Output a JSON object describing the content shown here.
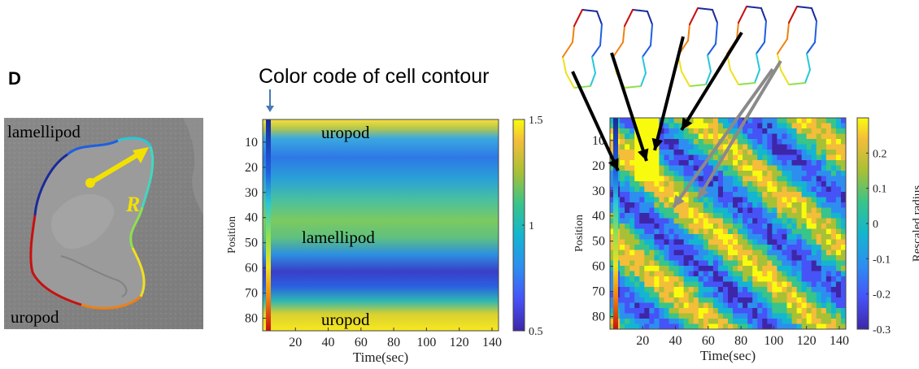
{
  "panel_letter": "D",
  "heading": "Color code of cell contour",
  "image_panel": {
    "labels": {
      "lamellipod": "lamellipod",
      "uropod": "uropod",
      "radius": "R"
    }
  },
  "colors": {
    "contour": [
      "#1a2a9a",
      "#1f5fe0",
      "#28c8d8",
      "#8fe050",
      "#f0e020",
      "#f08010",
      "#c81010"
    ],
    "arrow_yellow": "#f2e000",
    "arrow_black": "#000000",
    "arrow_gray": "#8a8a8a"
  },
  "chart_data": [
    {
      "type": "heatmap",
      "title": "",
      "xlabel": "Time(sec)",
      "ylabel": "Position",
      "x_ticks": [
        20,
        40,
        60,
        80,
        100,
        120,
        140
      ],
      "y_ticks": [
        10,
        20,
        30,
        40,
        50,
        60,
        70,
        80
      ],
      "xlim": [
        0,
        144
      ],
      "ylim": [
        1,
        85
      ],
      "colorbar": {
        "min": 0.5,
        "max": 1.5,
        "ticks": [
          0.5,
          1,
          1.5
        ],
        "label": ""
      },
      "annotations": [
        "uropod",
        "lamellipod",
        "uropod"
      ],
      "colormap": "parula"
    },
    {
      "type": "heatmap",
      "title": "",
      "xlabel": "Time(sec)",
      "ylabel": "Position",
      "x_ticks": [
        20,
        40,
        60,
        80,
        100,
        120,
        140
      ],
      "y_ticks": [
        10,
        20,
        30,
        40,
        50,
        60,
        70,
        80
      ],
      "xlim": [
        0,
        144
      ],
      "ylim": [
        1,
        85
      ],
      "colorbar": {
        "min": -0.3,
        "max": 0.3,
        "ticks": [
          0.2,
          0.1,
          0,
          -0.1,
          -0.2,
          -0.3
        ],
        "tick_labels": [
          "0.2",
          "0.1",
          "0",
          "-0.1",
          "-0.2",
          "-0.3"
        ],
        "label": "Rescaled radius"
      },
      "colormap": "parula",
      "contour_snapshots": 5
    }
  ]
}
